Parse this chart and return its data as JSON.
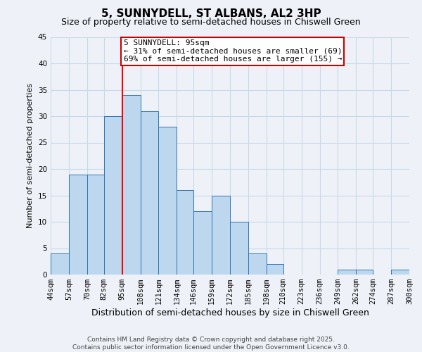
{
  "title": "5, SUNNYDELL, ST ALBANS, AL2 3HP",
  "subtitle": "Size of property relative to semi-detached houses in Chiswell Green",
  "xlabel": "Distribution of semi-detached houses by size in Chiswell Green",
  "ylabel": "Number of semi-detached properties",
  "bin_labels": [
    "44sqm",
    "57sqm",
    "70sqm",
    "82sqm",
    "95sqm",
    "108sqm",
    "121sqm",
    "134sqm",
    "146sqm",
    "159sqm",
    "172sqm",
    "185sqm",
    "198sqm",
    "210sqm",
    "223sqm",
    "236sqm",
    "249sqm",
    "262sqm",
    "274sqm",
    "287sqm",
    "300sqm"
  ],
  "bin_edges": [
    44,
    57,
    70,
    82,
    95,
    108,
    121,
    134,
    146,
    159,
    172,
    185,
    198,
    210,
    223,
    236,
    249,
    262,
    274,
    287,
    300
  ],
  "bar_heights": [
    4,
    19,
    19,
    30,
    34,
    31,
    28,
    16,
    12,
    15,
    10,
    4,
    2,
    0,
    0,
    0,
    1,
    1,
    0,
    1,
    0
  ],
  "bar_color": "#bdd7ee",
  "bar_edge_color": "#2e75b6",
  "grid_color": "#c8d8e8",
  "bg_color": "#eef2f8",
  "red_line_x": 95,
  "annotation_line1": "5 SUNNYDELL: 95sqm",
  "annotation_line2": "← 31% of semi-detached houses are smaller (69)",
  "annotation_line3": "69% of semi-detached houses are larger (155) →",
  "annotation_box_color": "#ffffff",
  "annotation_box_edge": "#cc0000",
  "ylim": [
    0,
    45
  ],
  "yticks": [
    0,
    5,
    10,
    15,
    20,
    25,
    30,
    35,
    40,
    45
  ],
  "footer_line1": "Contains HM Land Registry data © Crown copyright and database right 2025.",
  "footer_line2": "Contains public sector information licensed under the Open Government Licence v3.0.",
  "title_fontsize": 11,
  "subtitle_fontsize": 9,
  "xlabel_fontsize": 9,
  "ylabel_fontsize": 8,
  "tick_fontsize": 7.5,
  "annotation_fontsize": 8,
  "footer_fontsize": 6.5
}
